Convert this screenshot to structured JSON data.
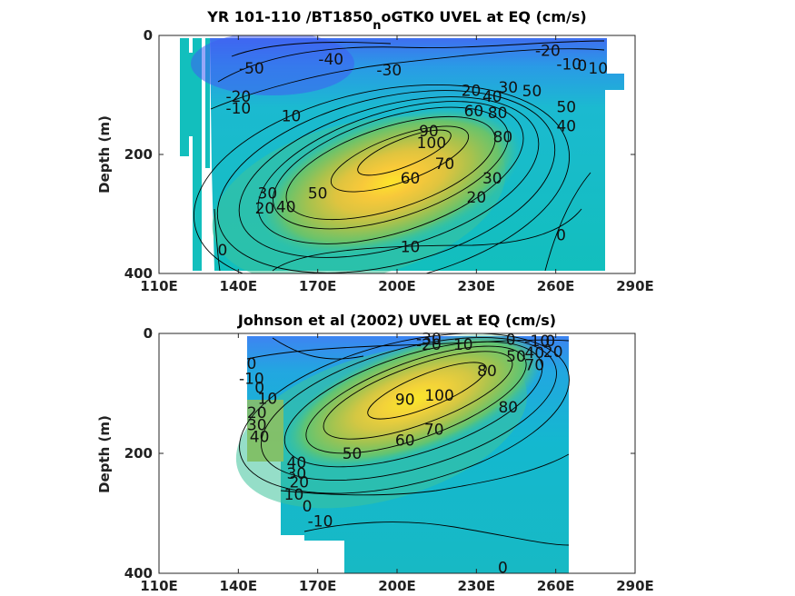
{
  "chart_data": [
    {
      "type": "heatmap",
      "title": "YR 101-110 /BT1850",
      "title_sub": "n",
      "title_rest": "oGTK0 UVEL at EQ (cm/s)",
      "ylabel": "Depth (m)",
      "xticks": [
        "110E",
        "140E",
        "170E",
        "200E",
        "230E",
        "260E",
        "290E"
      ],
      "xlim": [
        110,
        290
      ],
      "yticks": [
        "0",
        "200",
        "400"
      ],
      "ylim": [
        0,
        400
      ],
      "y_reversed": true,
      "colormap": "parula",
      "core": {
        "lon": 205,
        "depth": 170,
        "max": 100
      },
      "contour_labels": [
        {
          "text": "-50",
          "lon": 145,
          "depth": 55
        },
        {
          "text": "-40",
          "lon": 175,
          "depth": 40
        },
        {
          "text": "-30",
          "lon": 197,
          "depth": 58
        },
        {
          "text": "-20",
          "lon": 257,
          "depth": 25
        },
        {
          "text": "-10",
          "lon": 265,
          "depth": 48
        },
        {
          "text": "0",
          "lon": 270,
          "depth": 50
        },
        {
          "text": "10",
          "lon": 276,
          "depth": 55
        },
        {
          "text": "-20",
          "lon": 140,
          "depth": 102
        },
        {
          "text": "-10",
          "lon": 140,
          "depth": 122
        },
        {
          "text": "10",
          "lon": 160,
          "depth": 135
        },
        {
          "text": "20",
          "lon": 228,
          "depth": 92
        },
        {
          "text": "30",
          "lon": 242,
          "depth": 87
        },
        {
          "text": "40",
          "lon": 236,
          "depth": 102
        },
        {
          "text": "50",
          "lon": 251,
          "depth": 93
        },
        {
          "text": "60",
          "lon": 229,
          "depth": 127
        },
        {
          "text": "80",
          "lon": 238,
          "depth": 130
        },
        {
          "text": "90",
          "lon": 212,
          "depth": 160
        },
        {
          "text": "100",
          "lon": 213,
          "depth": 180
        },
        {
          "text": "80",
          "lon": 240,
          "depth": 170
        },
        {
          "text": "50",
          "lon": 264,
          "depth": 120
        },
        {
          "text": "40",
          "lon": 264,
          "depth": 152
        },
        {
          "text": "70",
          "lon": 218,
          "depth": 215
        },
        {
          "text": "60",
          "lon": 205,
          "depth": 240
        },
        {
          "text": "30",
          "lon": 236,
          "depth": 240
        },
        {
          "text": "20",
          "lon": 230,
          "depth": 272
        },
        {
          "text": "50",
          "lon": 170,
          "depth": 265
        },
        {
          "text": "40",
          "lon": 158,
          "depth": 288
        },
        {
          "text": "30",
          "lon": 151,
          "depth": 265
        },
        {
          "text": "20",
          "lon": 150,
          "depth": 290
        },
        {
          "text": "10",
          "lon": 205,
          "depth": 355
        },
        {
          "text": "0",
          "lon": 134,
          "depth": 360
        },
        {
          "text": "0",
          "lon": 262,
          "depth": 335
        }
      ]
    },
    {
      "type": "heatmap",
      "title": "Johnson et al (2002) UVEL at EQ (cm/s)",
      "ylabel": "Depth (m)",
      "xticks": [
        "110E",
        "140E",
        "170E",
        "200E",
        "230E",
        "260E",
        "290E"
      ],
      "xlim": [
        110,
        290
      ],
      "yticks": [
        "0",
        "200",
        "400"
      ],
      "ylim": [
        0,
        400
      ],
      "y_reversed": true,
      "colormap": "parula",
      "core": {
        "lon": 215,
        "depth": 120,
        "max": 100
      },
      "contour_labels": [
        {
          "text": "-30",
          "lon": 212,
          "depth": 8
        },
        {
          "text": "-20",
          "lon": 212,
          "depth": 18
        },
        {
          "text": "10",
          "lon": 225,
          "depth": 18
        },
        {
          "text": "0",
          "lon": 243,
          "depth": 10
        },
        {
          "text": "-10",
          "lon": 253,
          "depth": 12
        },
        {
          "text": "0",
          "lon": 258,
          "depth": 12
        },
        {
          "text": "50",
          "lon": 245,
          "depth": 38
        },
        {
          "text": "40",
          "lon": 252,
          "depth": 32
        },
        {
          "text": "20",
          "lon": 259,
          "depth": 30
        },
        {
          "text": "70",
          "lon": 252,
          "depth": 52
        },
        {
          "text": "80",
          "lon": 234,
          "depth": 62
        },
        {
          "text": "0",
          "lon": 145,
          "depth": 50
        },
        {
          "text": "-10",
          "lon": 145,
          "depth": 75
        },
        {
          "text": "0",
          "lon": 148,
          "depth": 90
        },
        {
          "text": "10",
          "lon": 151,
          "depth": 108
        },
        {
          "text": "20",
          "lon": 147,
          "depth": 132
        },
        {
          "text": "30",
          "lon": 147,
          "depth": 152
        },
        {
          "text": "40",
          "lon": 148,
          "depth": 172
        },
        {
          "text": "90",
          "lon": 203,
          "depth": 110
        },
        {
          "text": "100",
          "lon": 216,
          "depth": 103
        },
        {
          "text": "80",
          "lon": 242,
          "depth": 123
        },
        {
          "text": "70",
          "lon": 214,
          "depth": 160
        },
        {
          "text": "60",
          "lon": 203,
          "depth": 178
        },
        {
          "text": "50",
          "lon": 183,
          "depth": 200
        },
        {
          "text": "40",
          "lon": 162,
          "depth": 215
        },
        {
          "text": "30",
          "lon": 162,
          "depth": 233
        },
        {
          "text": "20",
          "lon": 163,
          "depth": 248
        },
        {
          "text": "10",
          "lon": 161,
          "depth": 268
        },
        {
          "text": "0",
          "lon": 166,
          "depth": 288
        },
        {
          "text": "-10",
          "lon": 171,
          "depth": 313
        },
        {
          "text": "0",
          "lon": 240,
          "depth": 390
        }
      ]
    }
  ]
}
